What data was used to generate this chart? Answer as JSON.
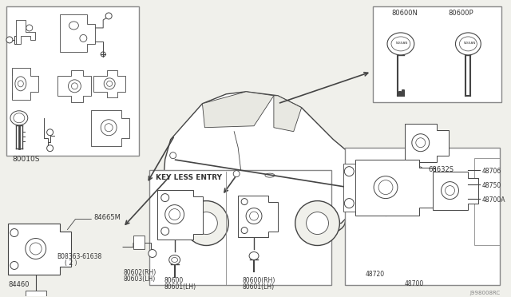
{
  "bg_color": "#f0f0eb",
  "white": "#ffffff",
  "border_color": "#666666",
  "line_color": "#444444",
  "text_color": "#333333",
  "fig_width": 6.4,
  "fig_height": 3.72,
  "dpi": 100,
  "watermark": "J998008RC",
  "labels": {
    "top_left_box": "80010S",
    "label_84460": "84460",
    "label_84665M": "84665M",
    "label_bolt": "B08363-61638",
    "label_bolt2": "( 2 )",
    "label_80602": "80602(RH)",
    "label_80603": "80603(LH)",
    "keyless_title": "KEY LESS ENTRY",
    "label_80600": "80600",
    "label_80601lh": "80601(LH)",
    "label_80600rh": "80600(RH)",
    "label_80601lh2": "80601(LH)",
    "label_80600N": "80600N",
    "label_80600P": "80600P",
    "label_68632S": "68632S",
    "label_48706": "48706",
    "label_48750": "48750",
    "label_48700A": "48700A",
    "label_48720": "48720",
    "label_48700": "48700"
  }
}
